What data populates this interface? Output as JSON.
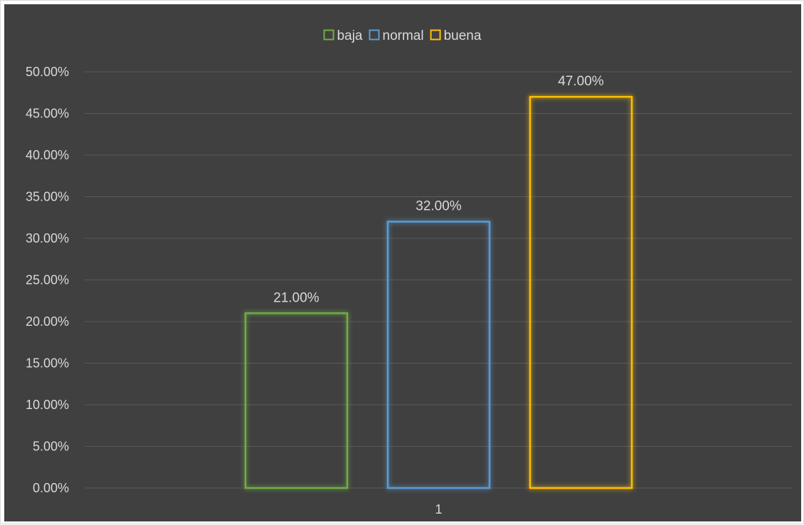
{
  "chart_data": {
    "type": "bar",
    "categories": [
      "1"
    ],
    "series": [
      {
        "name": "baja",
        "values": [
          0.21
        ],
        "color": "#70ad47",
        "label": "21.00%"
      },
      {
        "name": "normal",
        "values": [
          0.32
        ],
        "color": "#5b9bd5",
        "label": "32.00%"
      },
      {
        "name": "buena",
        "values": [
          0.47
        ],
        "color": "#ffc000",
        "label": "47.00%"
      }
    ],
    "yticks": [
      "0.00%",
      "5.00%",
      "10.00%",
      "15.00%",
      "20.00%",
      "25.00%",
      "30.00%",
      "35.00%",
      "40.00%",
      "45.00%",
      "50.00%"
    ],
    "ylim": [
      0,
      0.5
    ],
    "ytick_step": 0.05,
    "grid": true,
    "legend_position": "top",
    "bar_style": "outline",
    "colors": {
      "plot_background": "#404040",
      "gridline": "#595959",
      "text": "#d9d9d9",
      "frame_border": "#d9d9d9"
    }
  }
}
